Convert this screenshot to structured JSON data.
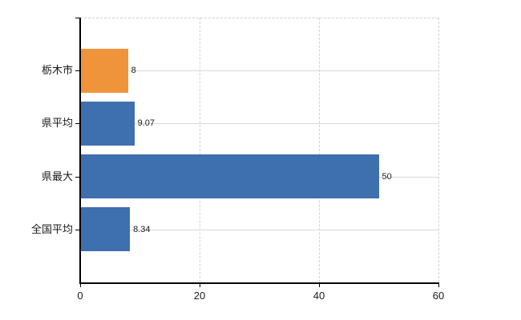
{
  "chart_data": {
    "type": "bar",
    "orientation": "horizontal",
    "title": "",
    "categories": [
      "栃木市",
      "県平均",
      "県最大",
      "全国平均"
    ],
    "values": [
      8,
      9.07,
      50,
      8.34
    ],
    "value_labels": [
      "8",
      "9.07",
      "50",
      "8.34"
    ],
    "bar_colors": [
      "#f0943c",
      "#3e6fae",
      "#3e6fae",
      "#3e6fae"
    ],
    "xlim": [
      0,
      60
    ],
    "x_ticks": [
      0,
      20,
      40,
      60
    ],
    "x_tick_labels": [
      "0",
      "20",
      "40",
      "60"
    ],
    "grid": "on",
    "legend": "none"
  },
  "colors": {
    "background": "#ffffff",
    "axis": "#000000",
    "gridline_horizontal": "#d9d9d9",
    "gridline_vertical": "#d2d2d2",
    "text": "#1a1a1a",
    "highlight_bar": "#f0943c",
    "default_bar": "#3e6fae"
  }
}
